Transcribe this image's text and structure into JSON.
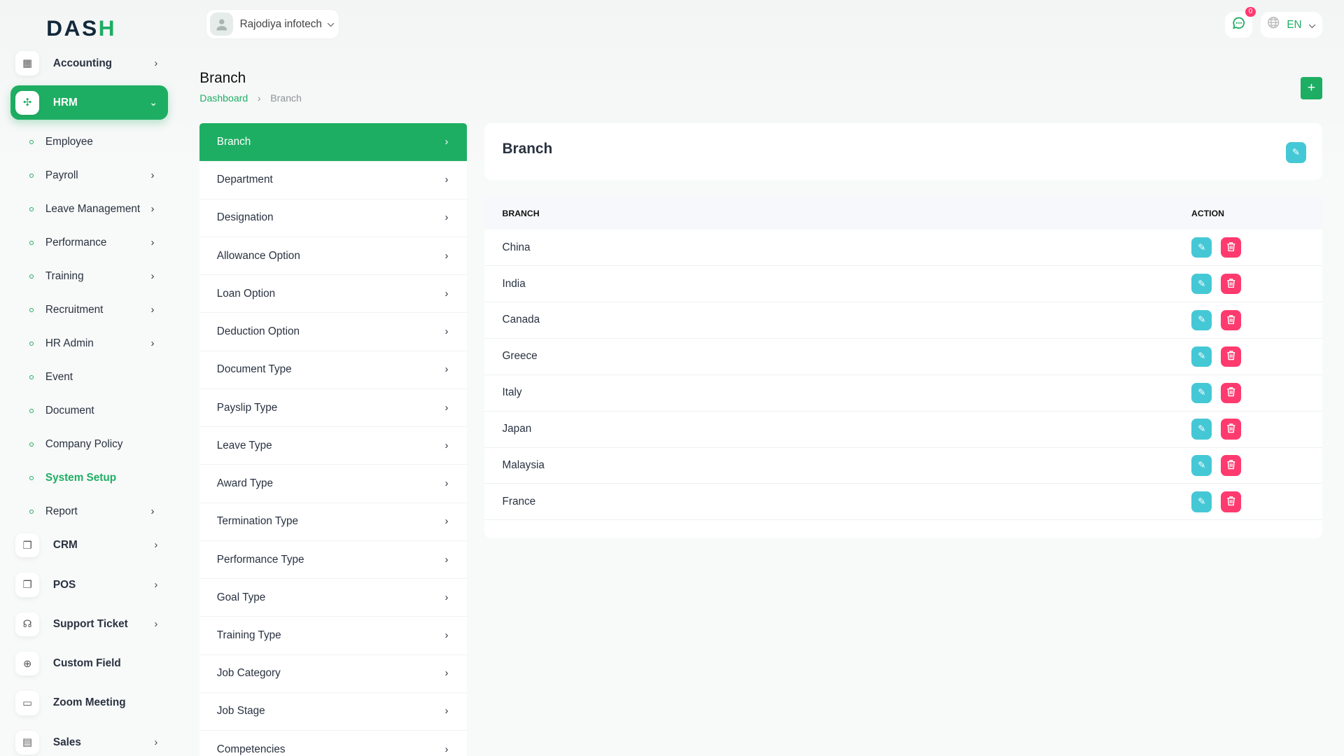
{
  "brand": {
    "logo_text": "DASH"
  },
  "header": {
    "company": "Rajodiya infotech",
    "notifications_count": "0",
    "language": "EN"
  },
  "sidebar": {
    "items": [
      {
        "label": "Accounting",
        "icon": "grid-plus-icon",
        "chevron": true
      },
      {
        "label": "HRM",
        "icon": "hrm-icon",
        "active": true,
        "expanded": true
      }
    ],
    "hrm_sub": [
      {
        "label": "Employee"
      },
      {
        "label": "Payroll",
        "chevron": true
      },
      {
        "label": "Leave Management",
        "chevron": true
      },
      {
        "label": "Performance",
        "chevron": true
      },
      {
        "label": "Training",
        "chevron": true
      },
      {
        "label": "Recruitment",
        "chevron": true
      },
      {
        "label": "HR Admin",
        "chevron": true
      },
      {
        "label": "Event"
      },
      {
        "label": "Document"
      },
      {
        "label": "Company Policy"
      },
      {
        "label": "System Setup",
        "current": true
      },
      {
        "label": "Report",
        "chevron": true
      }
    ],
    "items_after": [
      {
        "label": "CRM",
        "icon": "layers-icon",
        "chevron": true
      },
      {
        "label": "POS",
        "icon": "layers-icon",
        "chevron": true
      },
      {
        "label": "Support Ticket",
        "icon": "headphones-icon",
        "chevron": true
      },
      {
        "label": "Custom Field",
        "icon": "plus-circle-icon"
      },
      {
        "label": "Zoom Meeting",
        "icon": "video-icon"
      },
      {
        "label": "Sales",
        "icon": "file-icon",
        "chevron": true
      }
    ]
  },
  "page": {
    "title": "Branch",
    "breadcrumb": [
      "Dashboard",
      "Branch"
    ]
  },
  "setup_menu": [
    "Branch",
    "Department",
    "Designation",
    "Allowance Option",
    "Loan Option",
    "Deduction Option",
    "Document Type",
    "Payslip Type",
    "Leave Type",
    "Award Type",
    "Termination Type",
    "Performance Type",
    "Goal Type",
    "Training Type",
    "Job Category",
    "Job Stage",
    "Competencies"
  ],
  "panel": {
    "title": "Branch"
  },
  "table": {
    "headers": [
      "BRANCH",
      "ACTION"
    ],
    "rows": [
      "China",
      "India",
      "Canada",
      "Greece",
      "Italy",
      "Japan",
      "Malaysia",
      "France"
    ]
  },
  "colors": {
    "accent": "#1eae63",
    "edit": "#45c8d6",
    "delete": "#ff3a6e"
  }
}
